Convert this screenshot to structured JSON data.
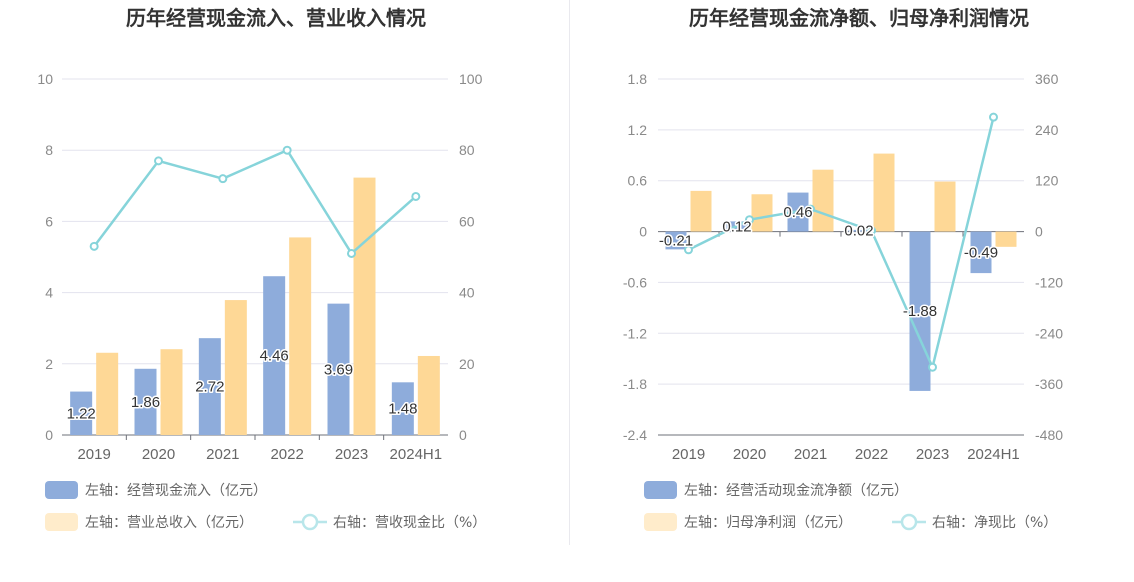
{
  "colors": {
    "bar1": "#8eacdb",
    "bar2": "#fed896",
    "line": "#86d4da",
    "grid": "#e3e3ee"
  },
  "chart_data": [
    {
      "type": "bar",
      "title": "历年经营现金流入、营业收入情况",
      "categories": [
        "2019",
        "2020",
        "2021",
        "2022",
        "2023",
        "2024H1"
      ],
      "y_left": {
        "min": 0,
        "max": 10,
        "ticks": [
          "0",
          "2",
          "4",
          "6",
          "8",
          "10"
        ]
      },
      "y_right": {
        "min": 0,
        "max": 100,
        "ticks": [
          "0",
          "20",
          "40",
          "60",
          "80",
          "100"
        ]
      },
      "bar_series": [
        {
          "name": "左轴：经营现金流入（亿元）",
          "axis": "left",
          "values": [
            1.22,
            1.86,
            2.72,
            4.46,
            3.69,
            1.48
          ],
          "labels": [
            "1.22",
            "1.86",
            "2.72",
            "4.46",
            "3.69",
            "1.48"
          ]
        },
        {
          "name": "左轴：营业总收入（亿元）",
          "axis": "left",
          "values": [
            2.31,
            2.41,
            3.79,
            5.55,
            7.23,
            2.22
          ]
        }
      ],
      "line_series": {
        "name": "右轴：营收现金比（%）",
        "axis": "right",
        "values": [
          53,
          77,
          72,
          80,
          51,
          67
        ]
      }
    },
    {
      "type": "bar",
      "title": "历年经营现金流净额、归母净利润情况",
      "categories": [
        "2019",
        "2020",
        "2021",
        "2022",
        "2023",
        "2024H1"
      ],
      "y_left": {
        "min": -2.4,
        "max": 1.8,
        "ticks": [
          "-2.4",
          "-1.8",
          "-1.2",
          "-0.6",
          "0",
          "0.6",
          "1.2",
          "1.8"
        ]
      },
      "y_right": {
        "min": -480,
        "max": 360,
        "ticks": [
          "-480",
          "-360",
          "-240",
          "-120",
          "0",
          "120",
          "240",
          "360"
        ]
      },
      "bar_series": [
        {
          "name": "左轴：经营活动现金流净额（亿元）",
          "axis": "left",
          "values": [
            -0.21,
            0.12,
            0.46,
            0.02,
            -1.88,
            -0.49
          ],
          "labels": [
            "-0.21",
            "0.12",
            "0.46",
            "0.02",
            "-1.88",
            "-0.49"
          ]
        },
        {
          "name": "左轴：归母净利润（亿元）",
          "axis": "left",
          "values": [
            0.48,
            0.44,
            0.73,
            0.92,
            0.59,
            -0.18
          ]
        }
      ],
      "line_series": {
        "name": "右轴：净现比（%）",
        "axis": "right",
        "values": [
          -43,
          28,
          53,
          2,
          -320,
          270
        ]
      }
    }
  ]
}
